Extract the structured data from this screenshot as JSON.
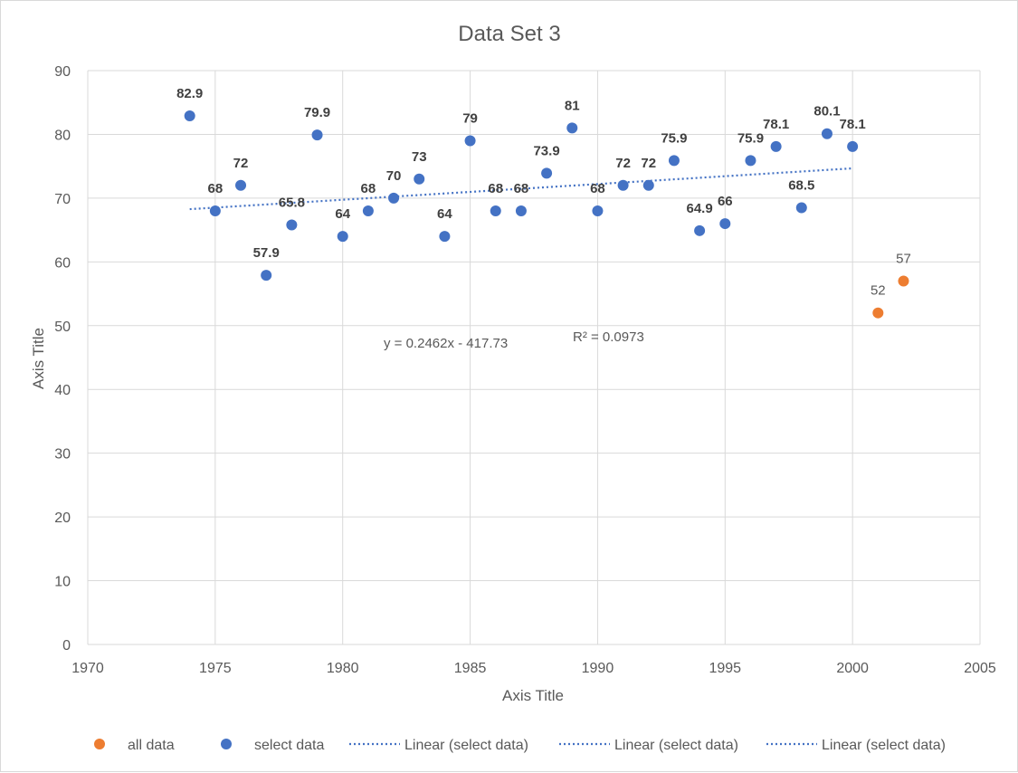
{
  "chart_data": {
    "type": "scatter",
    "title": "Data Set 3",
    "xlabel": "Axis Title",
    "ylabel": "Axis Title",
    "xlim": [
      1970,
      2005
    ],
    "ylim": [
      0,
      90
    ],
    "x_ticks": [
      1970,
      1975,
      1980,
      1985,
      1990,
      1995,
      2000,
      2005
    ],
    "y_ticks": [
      0,
      10,
      20,
      30,
      40,
      50,
      60,
      70,
      80,
      90
    ],
    "grid": true,
    "legend_position": "bottom",
    "series": [
      {
        "name": "all data",
        "color": "#ED7D31",
        "points": [
          {
            "x": 2001,
            "y": 52,
            "label": "52"
          },
          {
            "x": 2002,
            "y": 57,
            "label": "57"
          }
        ]
      },
      {
        "name": "select data",
        "color": "#4472C4",
        "points": [
          {
            "x": 1974,
            "y": 82.9,
            "label": "82.9"
          },
          {
            "x": 1975,
            "y": 68,
            "label": "68"
          },
          {
            "x": 1976,
            "y": 72,
            "label": "72"
          },
          {
            "x": 1977,
            "y": 57.9,
            "label": "57.9"
          },
          {
            "x": 1978,
            "y": 65.8,
            "label": "65.8"
          },
          {
            "x": 1979,
            "y": 79.9,
            "label": "79.9"
          },
          {
            "x": 1980,
            "y": 64,
            "label": "64"
          },
          {
            "x": 1981,
            "y": 68,
            "label": "68"
          },
          {
            "x": 1982,
            "y": 70,
            "label": "70"
          },
          {
            "x": 1983,
            "y": 73,
            "label": "73"
          },
          {
            "x": 1984,
            "y": 64,
            "label": "64"
          },
          {
            "x": 1985,
            "y": 79,
            "label": "79"
          },
          {
            "x": 1986,
            "y": 68,
            "label": "68"
          },
          {
            "x": 1987,
            "y": 68,
            "label": "68"
          },
          {
            "x": 1988,
            "y": 73.9,
            "label": "73.9"
          },
          {
            "x": 1989,
            "y": 81,
            "label": "81"
          },
          {
            "x": 1990,
            "y": 68,
            "label": "68"
          },
          {
            "x": 1991,
            "y": 72,
            "label": "72"
          },
          {
            "x": 1992,
            "y": 72,
            "label": "72"
          },
          {
            "x": 1993,
            "y": 75.9,
            "label": "75.9"
          },
          {
            "x": 1994,
            "y": 64.9,
            "label": "64.9"
          },
          {
            "x": 1995,
            "y": 66,
            "label": "66"
          },
          {
            "x": 1996,
            "y": 75.9,
            "label": "75.9"
          },
          {
            "x": 1997,
            "y": 78.1,
            "label": "78.1"
          },
          {
            "x": 1998,
            "y": 68.5,
            "label": "68.5"
          },
          {
            "x": 1999,
            "y": 80.1,
            "label": "80.1"
          },
          {
            "x": 2000,
            "y": 78.1,
            "label": "78.1"
          }
        ]
      }
    ],
    "trendline": {
      "name": "Linear (select data)",
      "color": "#4472C4",
      "style": "dotted",
      "slope": 0.2462,
      "intercept": -417.73,
      "x_range": [
        1974,
        2000
      ],
      "equation_text": "y = 0.2462x - 417.73",
      "r2_text": "R² = 0.0973"
    },
    "legend": [
      {
        "label": "all data",
        "kind": "marker",
        "color": "#ED7D31"
      },
      {
        "label": "select data",
        "kind": "marker",
        "color": "#4472C4"
      },
      {
        "label": "Linear (select data)",
        "kind": "dotted-line",
        "color": "#4472C4"
      },
      {
        "label": "Linear (select data)",
        "kind": "dotted-line",
        "color": "#4472C4"
      },
      {
        "label": "Linear (select data)",
        "kind": "dotted-line",
        "color": "#4472C4"
      }
    ]
  }
}
